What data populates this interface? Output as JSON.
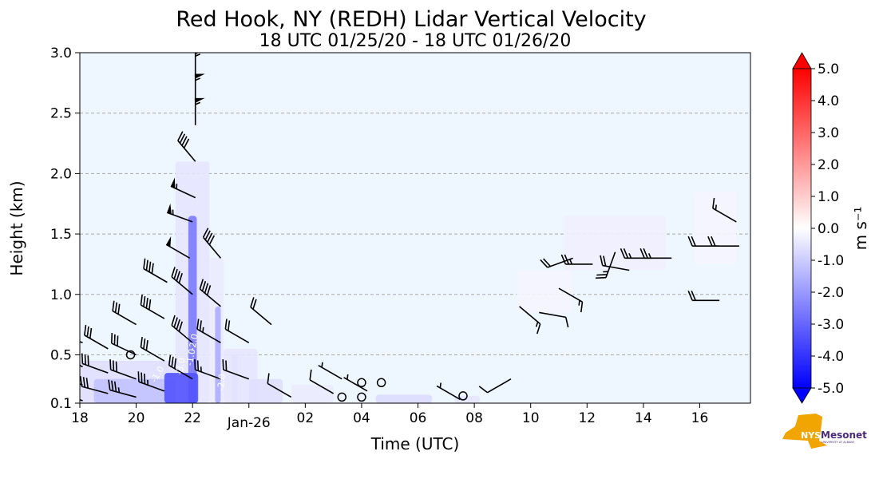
{
  "chart_data": {
    "type": "heatmap",
    "title": "Red Hook, NY (REDH) Lidar Vertical Velocity",
    "subtitle": "18 UTC 01/25/20 - 18 UTC 01/26/20",
    "xlabel": "Time (UTC)",
    "ylabel": "Height (km)",
    "xlim_hours_since_18utc": [
      0,
      23.8
    ],
    "ylim": [
      0.1,
      3.0
    ],
    "grid": "horizontal dashed",
    "x_ticks": [
      {
        "h": 0,
        "label": "18"
      },
      {
        "h": 2,
        "label": "20"
      },
      {
        "h": 4,
        "label": "22"
      },
      {
        "h": 6,
        "label": "Jan-26"
      },
      {
        "h": 8,
        "label": "02"
      },
      {
        "h": 10,
        "label": "04"
      },
      {
        "h": 12,
        "label": "06"
      },
      {
        "h": 14,
        "label": "08"
      },
      {
        "h": 16,
        "label": "10"
      },
      {
        "h": 18,
        "label": "12"
      },
      {
        "h": 20,
        "label": "14"
      },
      {
        "h": 22,
        "label": "16"
      }
    ],
    "y_ticks": [
      "0.1",
      "0.5",
      "1.0",
      "1.5",
      "2.0",
      "2.5",
      "3.0"
    ],
    "y_tick_values": [
      0.1,
      0.5,
      1.0,
      1.5,
      2.0,
      2.5,
      3.0
    ],
    "colorbar": {
      "label": "m s⁻¹",
      "range": [
        -5,
        5
      ],
      "ticks": [
        "5.0",
        "4.0",
        "3.0",
        "2.0",
        "1.0",
        "0.0",
        "-1.0",
        "-2.0",
        "-3.0",
        "-4.0",
        "-5.0"
      ],
      "colors": [
        "#0000ff",
        "#ffffff",
        "#ff0000"
      ]
    },
    "contour_labels": [
      "-1.0",
      "-2.0",
      "-3.0",
      "-2.0",
      "-1.0"
    ],
    "velocity_patches": [
      {
        "t": [
          0,
          3.6
        ],
        "z": [
          0.1,
          0.45
        ],
        "v": -0.6
      },
      {
        "t": [
          0.5,
          3.4
        ],
        "z": [
          0.1,
          0.3
        ],
        "v": -1.2
      },
      {
        "t": [
          3.4,
          4.6
        ],
        "z": [
          0.1,
          2.1
        ],
        "v": -0.5
      },
      {
        "t": [
          3.85,
          4.15
        ],
        "z": [
          0.1,
          1.65
        ],
        "v": -2.6
      },
      {
        "t": [
          3.0,
          4.2
        ],
        "z": [
          0.1,
          0.35
        ],
        "v": -3.4
      },
      {
        "t": [
          4.6,
          5.1
        ],
        "z": [
          0.1,
          1.3
        ],
        "v": -0.4
      },
      {
        "t": [
          4.8,
          5.0
        ],
        "z": [
          0.1,
          0.9
        ],
        "v": -1.6
      },
      {
        "t": [
          5.4,
          5.6
        ],
        "z": [
          0.1,
          0.5
        ],
        "v": -1.2
      },
      {
        "t": [
          5.1,
          6.3
        ],
        "z": [
          0.1,
          0.55
        ],
        "v": -0.5
      },
      {
        "t": [
          6.0,
          7.2
        ],
        "z": [
          0.1,
          0.3
        ],
        "v": -0.6
      },
      {
        "t": [
          7.5,
          9.0
        ],
        "z": [
          0.1,
          0.25
        ],
        "v": -0.4
      },
      {
        "t": [
          10.5,
          12.5
        ],
        "z": [
          0.1,
          0.17
        ],
        "v": -0.7
      },
      {
        "t": [
          13.3,
          14.2
        ],
        "z": [
          0.1,
          0.16
        ],
        "v": -0.5
      },
      {
        "t": [
          15.5,
          17.5
        ],
        "z": [
          0.85,
          1.2
        ],
        "v": -0.2
      },
      {
        "t": [
          17.2,
          20.8
        ],
        "z": [
          1.2,
          1.65
        ],
        "v": -0.3
      },
      {
        "t": [
          21.8,
          23.3
        ],
        "z": [
          1.25,
          1.85
        ],
        "v": -0.2
      }
    ],
    "wind_barbs": [
      {
        "t": 0.1,
        "z": 0.12,
        "dir": 290,
        "kt": 30
      },
      {
        "t": 0.1,
        "z": 0.25,
        "dir": 290,
        "kt": 30
      },
      {
        "t": 0.1,
        "z": 0.4,
        "dir": 300,
        "kt": 25
      },
      {
        "t": 0.1,
        "z": 0.6,
        "dir": 290,
        "kt": 20
      },
      {
        "t": 1.0,
        "z": 0.18,
        "dir": 285,
        "kt": 30
      },
      {
        "t": 1.0,
        "z": 0.35,
        "dir": 290,
        "kt": 30
      },
      {
        "t": 1.0,
        "z": 0.55,
        "dir": 300,
        "kt": 30
      },
      {
        "t": 2.0,
        "z": 0.15,
        "dir": 285,
        "kt": 35
      },
      {
        "t": 2.0,
        "z": 0.3,
        "dir": 290,
        "kt": 30
      },
      {
        "t": 2.0,
        "z": 0.5,
        "dir": 295,
        "kt": 30
      },
      {
        "t": 2.0,
        "z": 0.75,
        "dir": 300,
        "kt": 30
      },
      {
        "t": 3.0,
        "z": 0.2,
        "dir": 290,
        "kt": 35
      },
      {
        "t": 3.0,
        "z": 0.45,
        "dir": 300,
        "kt": 30
      },
      {
        "t": 3.0,
        "z": 0.8,
        "dir": 300,
        "kt": 40
      },
      {
        "t": 3.1,
        "z": 1.1,
        "dir": 300,
        "kt": 40
      },
      {
        "t": 4.0,
        "z": 0.3,
        "dir": 300,
        "kt": 30
      },
      {
        "t": 4.0,
        "z": 0.6,
        "dir": 310,
        "kt": 40
      },
      {
        "t": 4.0,
        "z": 1.0,
        "dir": 310,
        "kt": 40
      },
      {
        "t": 3.9,
        "z": 1.3,
        "dir": 300,
        "kt": 50
      },
      {
        "t": 4.0,
        "z": 1.6,
        "dir": 290,
        "kt": 55
      },
      {
        "t": 4.1,
        "z": 1.8,
        "dir": 295,
        "kt": 55
      },
      {
        "t": 4.1,
        "z": 2.1,
        "dir": 320,
        "kt": 40
      },
      {
        "t": 4.1,
        "z": 2.4,
        "dir": 0,
        "kt": 55
      },
      {
        "t": 4.1,
        "z": 2.6,
        "dir": 0,
        "kt": 55
      },
      {
        "t": 4.1,
        "z": 2.8,
        "dir": 0,
        "kt": 55
      },
      {
        "t": 5.0,
        "z": 0.3,
        "dir": 290,
        "kt": 25
      },
      {
        "t": 5.0,
        "z": 0.6,
        "dir": 300,
        "kt": 25
      },
      {
        "t": 5.0,
        "z": 0.9,
        "dir": 310,
        "kt": 40
      },
      {
        "t": 5.0,
        "z": 1.3,
        "dir": 320,
        "kt": 40
      },
      {
        "t": 6.0,
        "z": 0.3,
        "dir": 290,
        "kt": 20
      },
      {
        "t": 6.0,
        "z": 0.6,
        "dir": 300,
        "kt": 20
      },
      {
        "t": 6.8,
        "z": 0.75,
        "dir": 310,
        "kt": 20
      },
      {
        "t": 7.5,
        "z": 0.15,
        "dir": 300,
        "kt": 10
      },
      {
        "t": 9.0,
        "z": 0.18,
        "dir": 300,
        "kt": 10
      },
      {
        "t": 9.3,
        "z": 0.3,
        "dir": 300,
        "kt": 5
      },
      {
        "t": 10.2,
        "z": 0.2,
        "dir": 300,
        "kt": 5
      },
      {
        "t": 13.5,
        "z": 0.13,
        "dir": 300,
        "kt": 5
      },
      {
        "t": 15.3,
        "z": 0.3,
        "dir": 240,
        "kt": 10
      },
      {
        "t": 15.6,
        "z": 0.9,
        "dir": 130,
        "kt": 15
      },
      {
        "t": 16.3,
        "z": 0.85,
        "dir": 100,
        "kt": 10
      },
      {
        "t": 17.0,
        "z": 1.05,
        "dir": 120,
        "kt": 15
      },
      {
        "t": 17.5,
        "z": 1.3,
        "dir": 250,
        "kt": 20
      },
      {
        "t": 18.2,
        "z": 1.25,
        "dir": 270,
        "kt": 25
      },
      {
        "t": 19.0,
        "z": 1.35,
        "dir": 200,
        "kt": 25
      },
      {
        "t": 19.5,
        "z": 1.2,
        "dir": 280,
        "kt": 20
      },
      {
        "t": 20.3,
        "z": 1.3,
        "dir": 270,
        "kt": 25
      },
      {
        "t": 21.0,
        "z": 1.3,
        "dir": 270,
        "kt": 25
      },
      {
        "t": 22.7,
        "z": 1.4,
        "dir": 270,
        "kt": 20
      },
      {
        "t": 23.4,
        "z": 1.4,
        "dir": 270,
        "kt": 20
      },
      {
        "t": 22.7,
        "z": 0.95,
        "dir": 270,
        "kt": 20
      },
      {
        "t": 23.3,
        "z": 1.6,
        "dir": 300,
        "kt": 15
      }
    ],
    "calm_markers": [
      {
        "t": 9.3,
        "z": 0.15
      },
      {
        "t": 10.0,
        "z": 0.27
      },
      {
        "t": 10.0,
        "z": 0.15
      },
      {
        "t": 10.7,
        "z": 0.27
      },
      {
        "t": 13.6,
        "z": 0.16
      },
      {
        "t": 1.8,
        "z": 0.5
      }
    ]
  },
  "logo": {
    "text": "NYS Mesonet",
    "subtext": "UNIVERSITY AT ALBANY",
    "state_color": "#f0a500",
    "text_color": "#4b2a78"
  }
}
